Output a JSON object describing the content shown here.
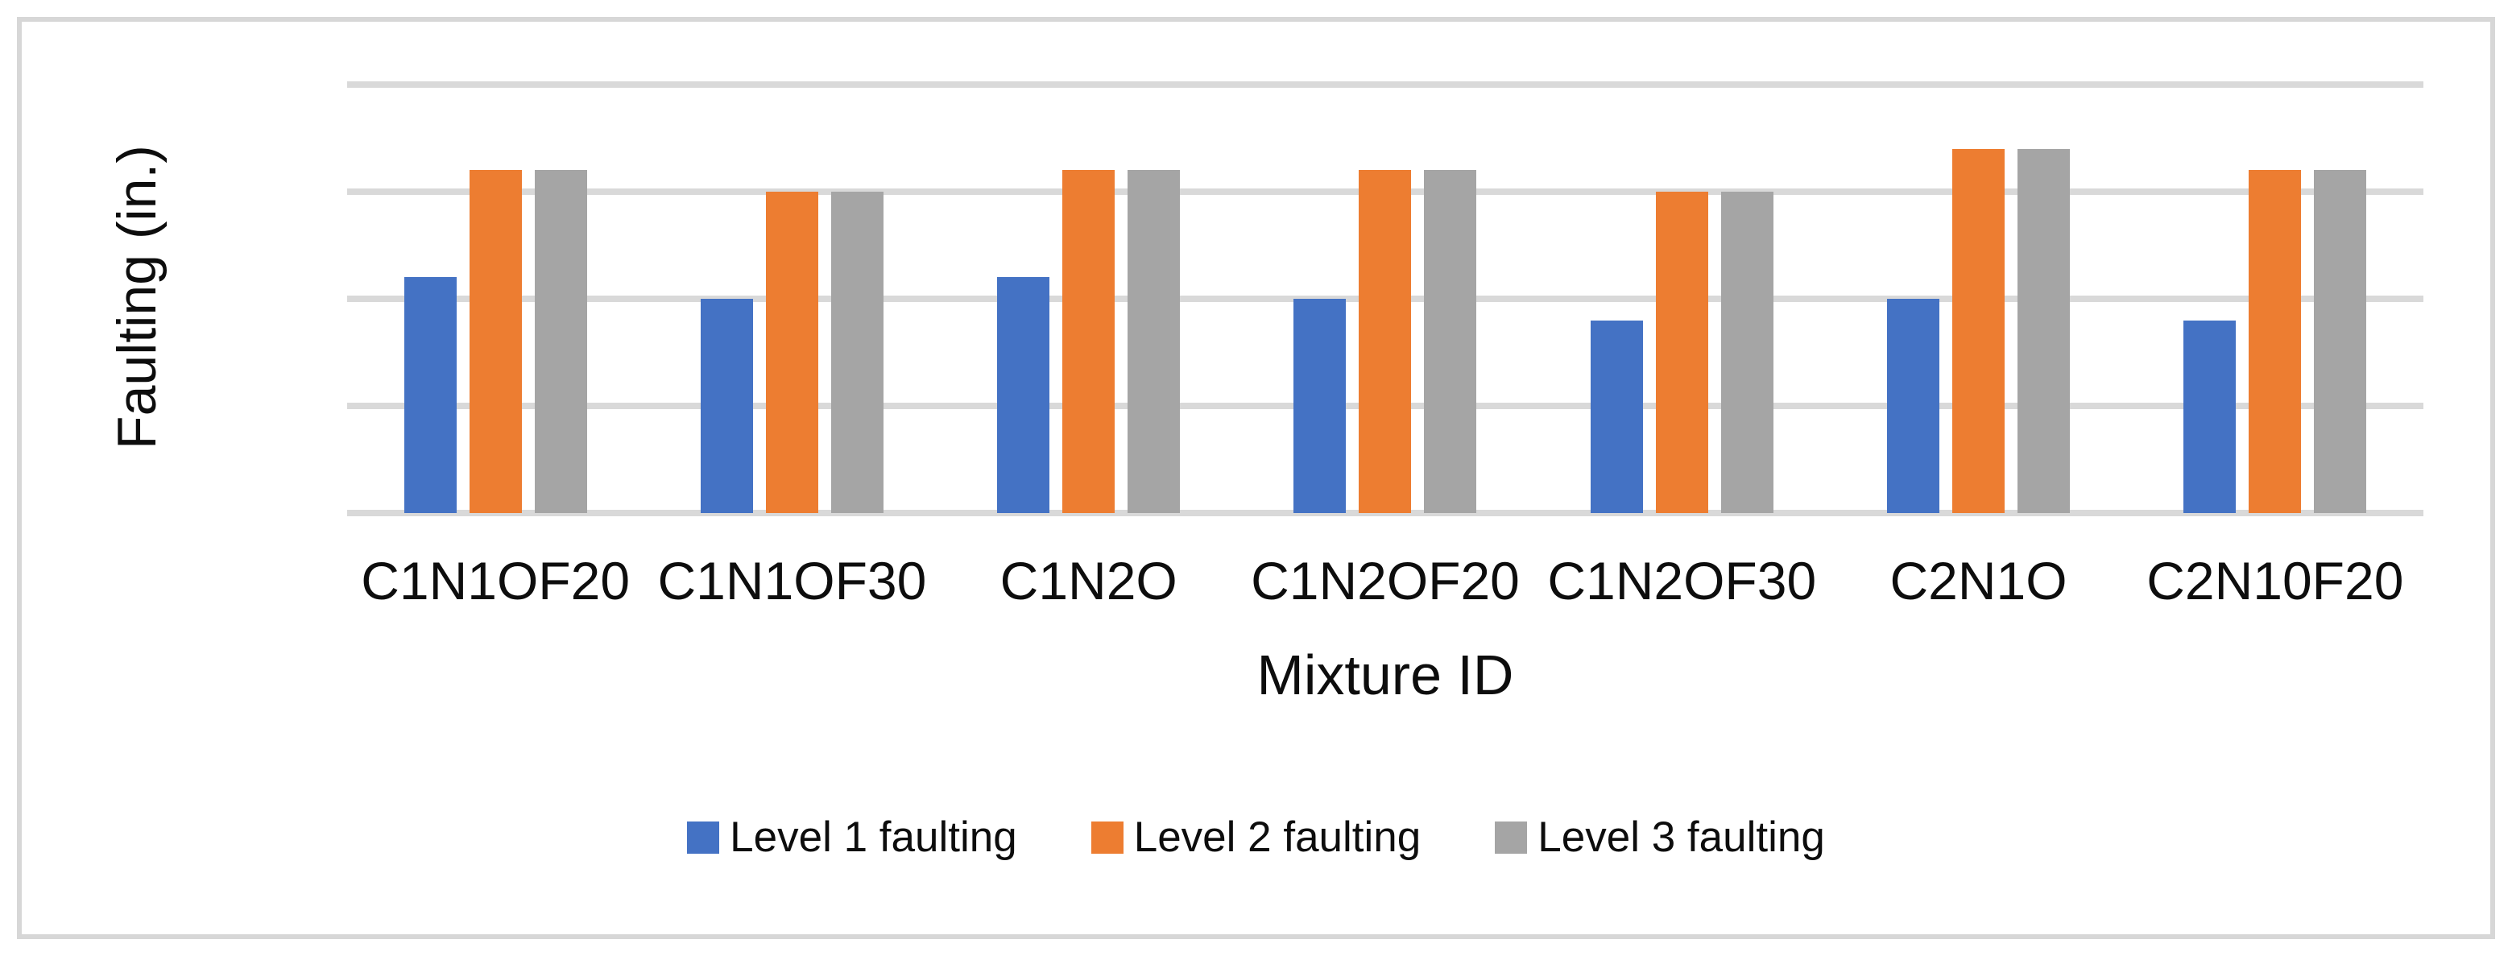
{
  "figure": {
    "background": "#ffffff",
    "border_color": "#d7d7d7"
  },
  "chart_data": {
    "type": "bar",
    "title": "",
    "xlabel": "Mixture ID",
    "ylabel": "Faulting (in.)",
    "categories": [
      "C1N1OF20",
      "C1N1OF30",
      "C1N2O",
      "C1N2OF20",
      "C1N2OF30",
      "C2N1O",
      "C2N10F20"
    ],
    "series": [
      {
        "name": "Level 1 faulting",
        "color": "#4472c4",
        "values": [
          0.11,
          0.1,
          0.11,
          0.1,
          0.09,
          0.1,
          0.09
        ]
      },
      {
        "name": "Level 2 faulting",
        "color": "#ed7d31",
        "values": [
          0.16,
          0.15,
          0.16,
          0.16,
          0.15,
          0.17,
          0.16
        ]
      },
      {
        "name": "Level 3 faulting",
        "color": "#a5a5a5",
        "values": [
          0.16,
          0.15,
          0.16,
          0.16,
          0.15,
          0.17,
          0.16
        ]
      }
    ],
    "y_ticks": [
      0,
      0.05,
      0.1,
      0.15,
      0.2
    ],
    "y_tick_labels": [
      "0",
      "0.05",
      "0.1",
      "0.15",
      "0.2"
    ],
    "ylim": [
      0,
      0.2
    ],
    "grid": true,
    "gridline_color": "#d9d9d9",
    "legend_position": "bottom"
  }
}
